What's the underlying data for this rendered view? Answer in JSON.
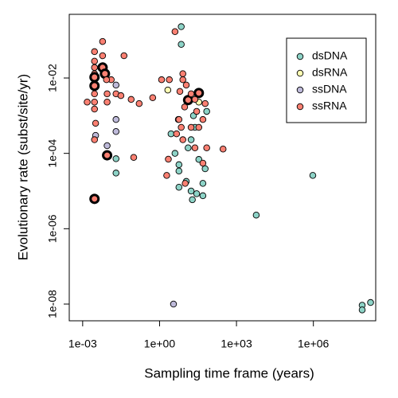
{
  "chart_data": {
    "type": "scatter",
    "x_label": "Sampling time frame (years)",
    "y_label": "Evolutionary rate (subst/site/yr)",
    "log_x": true,
    "log_y": true,
    "xlim": [
      0.0003,
      270000000.0
    ],
    "ylim": [
      3.6e-09,
      0.49
    ],
    "xticks": [
      {
        "value": 0.001,
        "label": "1e-03"
      },
      {
        "value": 1,
        "label": "1e+00"
      },
      {
        "value": 1000,
        "label": "1e+03"
      },
      {
        "value": 1000000,
        "label": "1e+06"
      }
    ],
    "yticks": [
      {
        "value": 1e-08,
        "label": "1e-08"
      },
      {
        "value": 1e-06,
        "label": "1e-06"
      },
      {
        "value": 0.0001,
        "label": "1e-04"
      },
      {
        "value": 0.01,
        "label": "1e-02"
      }
    ],
    "legend_position": "top-right",
    "series": [
      {
        "name": "dsDNA",
        "color": "#8dd3c7",
        "x": [
          7,
          7,
          4,
          5.7,
          5.7,
          5.7,
          11,
          17,
          28,
          19,
          49,
          17,
          24,
          34,
          60,
          49,
          13,
          21,
          69,
          2.8,
          0.02,
          0.02,
          950000,
          5900,
          80000000,
          80000000,
          170000000
        ],
        "values": [
          0.23,
          0.078,
          0.0001,
          5e-05,
          3.4e-05,
          1.26e-05,
          1.8e-05,
          1e-05,
          8.5e-06,
          5.9e-06,
          7.5e-06,
          0.00023,
          0.00049,
          6.9e-05,
          3.9e-05,
          1.6e-05,
          0.00014,
          0.001,
          0.0013,
          0.00033,
          3e-05,
          7.2e-05,
          2.6e-05,
          2.3e-06,
          9.3e-09,
          7e-09,
          1.1e-08
        ]
      },
      {
        "name": "dsRNA",
        "color": "#ffffb3",
        "x": [
          2.1,
          34
        ],
        "values": [
          0.0048,
          0.0023
        ]
      },
      {
        "name": "ssDNA",
        "color": "#bebada",
        "x": [
          0.02,
          0.02,
          0.0032,
          0.009,
          0.02,
          5.4,
          3.5
        ],
        "values": [
          0.0065,
          0.00038,
          0.0003,
          0.00016,
          0.00079,
          0.00079,
          1e-08
        ]
      },
      {
        "name": "ssRNA",
        "color": "#fb8072",
        "x": [
          0.006,
          0.0029,
          0.0029,
          0.0029,
          0.0029,
          0.0029,
          0.0029,
          0.0029,
          0.0029,
          0.0029,
          0.0015,
          0.006,
          0.0074,
          0.006,
          0.009,
          0.009,
          0.013,
          0.02,
          0.031,
          0.041,
          0.078,
          0.16,
          0.098,
          0.0032,
          0.009,
          0.0029,
          0.54,
          1.2,
          2.4,
          4,
          6.2,
          8.1,
          8.1,
          13,
          34,
          17,
          24,
          9.5,
          7,
          17,
          34,
          49,
          8.1,
          24,
          69,
          1.9,
          10,
          49,
          300,
          2.2,
          5.7,
          4.6,
          11,
          28,
          60,
          0.0029,
          0.0085
        ],
        "values": [
          0.093,
          0.05,
          0.028,
          0.019,
          0.013,
          0.0105,
          0.0062,
          0.0038,
          0.0023,
          0.0015,
          0.0023,
          0.019,
          0.013,
          0.039,
          0.0038,
          0.0023,
          0.009,
          0.0038,
          0.0034,
          0.039,
          0.0027,
          0.0021,
          7.8e-05,
          0.00063,
          8.9e-05,
          6.2e-06,
          0.003,
          0.009,
          0.009,
          0.17,
          0.0044,
          0.013,
          0.009,
          0.0026,
          0.004,
          0.0038,
          0.0027,
          0.0017,
          0.00049,
          0.00049,
          0.00049,
          0.00079,
          0.00023,
          0.00014,
          0.00014,
          2.6e-05,
          1.6e-05,
          5.5e-05,
          0.00013,
          7e-05,
          0.00079,
          0.00033,
          0.0065,
          0.0013,
          0.0021,
          0.00023,
          0.009
        ],
        "highlight": [
          5,
          6,
          11,
          12,
          24,
          25,
          33,
          34
        ]
      }
    ]
  }
}
